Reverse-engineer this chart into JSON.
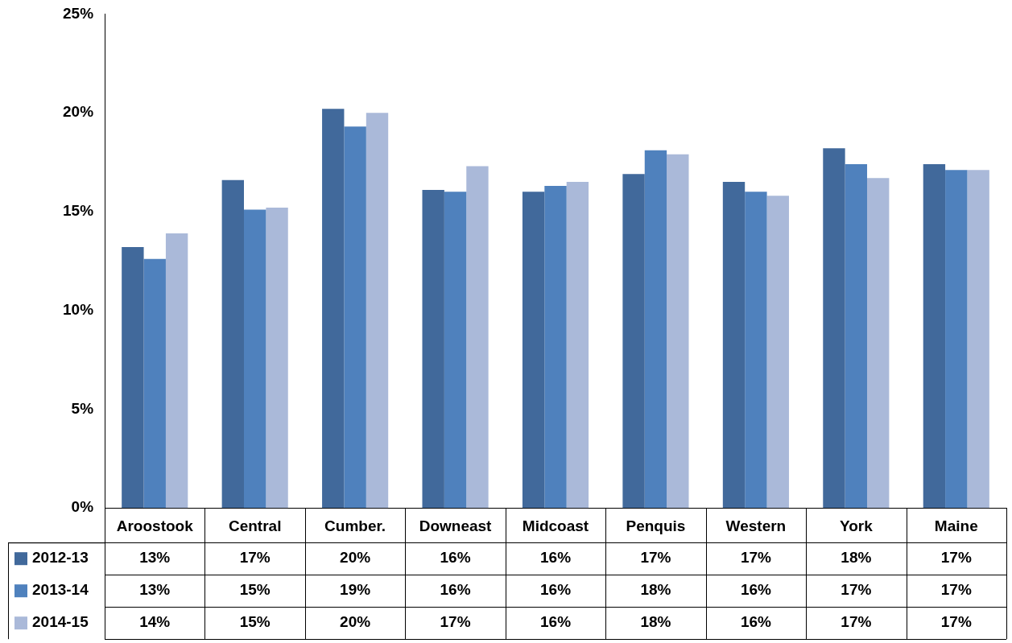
{
  "chart_data": {
    "type": "bar",
    "categories": [
      "Aroostook",
      "Central",
      "Cumber.",
      "Downeast",
      "Midcoast",
      "Penquis",
      "Western",
      "York",
      "Maine"
    ],
    "series": [
      {
        "name": "2012-13",
        "color": "#41699b",
        "values": [
          13.2,
          16.6,
          20.2,
          16.1,
          16.0,
          16.9,
          16.5,
          18.2,
          17.4
        ],
        "value_labels": [
          "13%",
          "17%",
          "20%",
          "16%",
          "16%",
          "17%",
          "17%",
          "18%",
          "17%"
        ]
      },
      {
        "name": "2013-14",
        "color": "#4f81bd",
        "values": [
          12.6,
          15.1,
          19.3,
          16.0,
          16.3,
          18.1,
          16.0,
          17.4,
          17.1
        ],
        "value_labels": [
          "13%",
          "15%",
          "19%",
          "16%",
          "16%",
          "18%",
          "16%",
          "17%",
          "17%"
        ]
      },
      {
        "name": "2014-15",
        "color": "#aab9d9",
        "values": [
          13.9,
          15.2,
          20.0,
          17.3,
          16.5,
          17.9,
          15.8,
          16.7,
          17.1
        ],
        "value_labels": [
          "14%",
          "15%",
          "20%",
          "17%",
          "16%",
          "18%",
          "16%",
          "17%",
          "17%"
        ]
      }
    ],
    "ylim": [
      0,
      25
    ],
    "yticks": [
      {
        "value": 0,
        "label": "0%"
      },
      {
        "value": 5,
        "label": "5%"
      },
      {
        "value": 10,
        "label": "10%"
      },
      {
        "value": 15,
        "label": "15%"
      },
      {
        "value": 20,
        "label": "20%"
      },
      {
        "value": 25,
        "label": "25%"
      }
    ],
    "grid": false,
    "legend": "bottom"
  }
}
